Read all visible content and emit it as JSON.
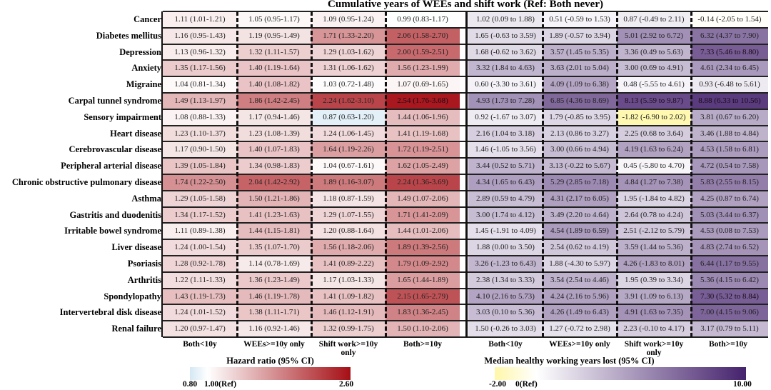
{
  "chart_data": {
    "type": "heatmap",
    "title": "Cumulative years of WEEs and shift work (Ref: Both never)",
    "columns": [
      "Both<10y",
      "WEEs>=10y only",
      "Shift work>=10y only",
      "Both>=10y"
    ],
    "rows": [
      "Cancer",
      "Diabetes mellitus",
      "Depression",
      "Anxiety",
      "Migraine",
      "Carpal tunnel syndrome",
      "Sensory impairment",
      "Heart disease",
      "Cerebrovascular disease",
      "Peripheral arterial disease",
      "Chronic obstructive pulmonary disease",
      "Asthma",
      "Gastritis and duodenitis",
      "Irritable bowel syndrome",
      "Liver disease",
      "Psoriasis",
      "Arthritis",
      "Spondylopathy",
      "Intervertebral disk disease",
      "Renal failure"
    ],
    "hazard_ratio": [
      [
        "1.11 (1.01-1.21)",
        "1.05 (0.95-1.17)",
        "1.09 (0.95-1.24)",
        "0.99 (0.83-1.17)"
      ],
      [
        "1.16 (0.95-1.43)",
        "1.19 (0.95-1.49)",
        "1.71 (1.33-2.20)",
        "2.06 (1.58-2.70)"
      ],
      [
        "1.13 (0.96-1.32)",
        "1.32 (1.11-1.57)",
        "1.29 (1.03-1.62)",
        "2.00 (1.59-2.51)"
      ],
      [
        "1.35 (1.17-1.56)",
        "1.40 (1.19-1.64)",
        "1.31 (1.06-1.62)",
        "1.56 (1.23-1.99)"
      ],
      [
        "1.04 (0.81-1.34)",
        "1.40 (1.08-1.82)",
        "1.03 (0.72-1.48)",
        "1.07 (0.69-1.65)"
      ],
      [
        "1.49 (1.13-1.97)",
        "1.86 (1.42-2.45)",
        "2.24 (1.62-3.10)",
        "2.54 (1.76-3.68)"
      ],
      [
        "1.08 (0.88-1.33)",
        "1.17 (0.94-1.46)",
        "0.87 (0.63-1.20)",
        "1.44 (1.06-1.96)"
      ],
      [
        "1.23 (1.10-1.37)",
        "1.23 (1.08-1.39)",
        "1.24 (1.06-1.45)",
        "1.41 (1.19-1.68)"
      ],
      [
        "1.17 (0.90-1.50)",
        "1.40 (1.07-1.83)",
        "1.64 (1.19-2.26)",
        "1.72 (1.19-2.51)"
      ],
      [
        "1.39 (1.05-1.84)",
        "1.34 (0.98-1.83)",
        "1.04 (0.67-1.61)",
        "1.62 (1.05-2.49)"
      ],
      [
        "1.74 (1.22-2.50)",
        "2.04 (1.42-2.92)",
        "1.89 (1.16-3.07)",
        "2.24 (1.36-3.69)"
      ],
      [
        "1.29 (1.05-1.58)",
        "1.50 (1.21-1.86)",
        "1.18 (0.87-1.59)",
        "1.49 (1.07-2.06)"
      ],
      [
        "1.34 (1.17-1.52)",
        "1.41 (1.23-1.63)",
        "1.29 (1.07-1.55)",
        "1.71 (1.41-2.09)"
      ],
      [
        "1.11 (0.89-1.38)",
        "1.44 (1.15-1.81)",
        "1.20 (0.88-1.64)",
        "1.44 (1.01-2.06)"
      ],
      [
        "1.24 (1.00-1.54)",
        "1.35 (1.07-1.70)",
        "1.56 (1.18-2.06)",
        "1.89 (1.39-2.56)"
      ],
      [
        "1.28 (0.92-1.78)",
        "1.14 (0.78-1.69)",
        "1.41 (0.89-2.22)",
        "1.79 (1.09-2.92)"
      ],
      [
        "1.22 (1.11-1.33)",
        "1.36 (1.23-1.49)",
        "1.17 (1.03-1.33)",
        "1.65 (1.44-1.89)"
      ],
      [
        "1.43 (1.19-1.73)",
        "1.46 (1.19-1.78)",
        "1.41 (1.09-1.82)",
        "2.15 (1.65-2.79)"
      ],
      [
        "1.24 (1.01-1.52)",
        "1.38 (1.11-1.71)",
        "1.46 (1.12-1.91)",
        "1.83 (1.36-2.45)"
      ],
      [
        "1.20 (0.97-1.47)",
        "1.16 (0.92-1.46)",
        "1.32 (0.99-1.75)",
        "1.50 (1.10-2.06)"
      ]
    ],
    "years_lost": [
      [
        "1.02 (0.09 to 1.88)",
        "0.51 (-0.59 to 1.53)",
        "0.87 (-0.49 to 2.11)",
        "-0.14 (-2.05 to 1.54)"
      ],
      [
        "1.65 (-0.63 to 3.59)",
        "1.89 (-0.57 to 3.94)",
        "5.01 (2.92 to 6.72)",
        "6.32 (4.37 to 7.90)"
      ],
      [
        "1.68 (-0.62 to 3.62)",
        "3.57 (1.45 to 5.35)",
        "3.36 (0.49 to 5.63)",
        "7.33 (5.46 to 8.80)"
      ],
      [
        "3.32 (1.84 to 4.63)",
        "3.63 (2.01 to 5.04)",
        "3.00 (0.69 to 4.91)",
        "4.61 (2.34 to 6.45)"
      ],
      [
        "0.60 (-3.30 to 3.61)",
        "4.09 (1.09 to 6.38)",
        "0.48 (-5.55 to 4.61)",
        "0.93 (-6.48 to 5.61)"
      ],
      [
        "4.93 (1.73 to 7.28)",
        "6.85 (4.36 to 8.69)",
        "8.13 (5.59 to 9.87)",
        "8.88 (6.33 to 10.56)"
      ],
      [
        "0.92 (-1.67 to 3.07)",
        "1.79 (-0.85 to 3.95)",
        "-1.82 (-6.90 to 2.02)",
        "3.81 (0.67 to 6.20)"
      ],
      [
        "2.16 (1.04 to 3.18)",
        "2.13 (0.86 to 3.27)",
        "2.25 (0.68 to 3.64)",
        "3.46 (1.88 to 4.84)"
      ],
      [
        "1.46 (-1.05 to 3.56)",
        "3.00 (0.66 to 4.94)",
        "4.19 (1.63 to 6.24)",
        "4.53 (1.58 to 6.81)"
      ],
      [
        "3.44 (0.52 to 5.71)",
        "3.13 (-0.22 to 5.67)",
        "0.45 (-5.80 to 4.70)",
        "4.72 (0.54 to 7.58)"
      ],
      [
        "4.34 (1.65 to 6.43)",
        "5.29 (2.85 to 7.18)",
        "4.84 (1.27 to 7.38)",
        "5.83 (2.55 to 8.15)"
      ],
      [
        "2.89 (0.59 to 4.79)",
        "4.31 (2.17 to 6.05)",
        "1.95 (-1.84 to 4.82)",
        "4.25 (0.87 to 6.74)"
      ],
      [
        "3.00 (1.74 to 4.12)",
        "3.49 (2.20 to 4.64)",
        "2.64 (0.78 to 4.24)",
        "5.03 (3.44 to 6.37)"
      ],
      [
        "1.45 (-1.91 to 4.09)",
        "4.54 (1.89 to 6.59)",
        "2.51 (-2.12 to 5.79)",
        "4.53 (0.08 to 7.53)"
      ],
      [
        "1.88 (0.00 to 3.50)",
        "2.54 (0.62 to 4.19)",
        "3.59 (1.44 to 5.36)",
        "4.83 (2.74 to 6.52)"
      ],
      [
        "3.26 (-1.23 to 6.43)",
        "1.88 (-4.30 to 5.97)",
        "4.26 (-1.83 to 8.01)",
        "6.44 (1.17 to 9.55)"
      ],
      [
        "2.38 (1.34 to 3.33)",
        "3.54 (2.54 to 4.46)",
        "1.95 (0.39 to 3.34)",
        "5.36 (4.15 to 6.42)"
      ],
      [
        "4.10 (2.16 to 5.73)",
        "4.24 (2.16 to 5.96)",
        "3.91 (1.09 to 6.13)",
        "7.30 (5.32 to 8.84)"
      ],
      [
        "3.03 (0.10 to 5.36)",
        "4.26 (1.49 to 6.43)",
        "4.91 (1.63 to 7.35)",
        "7.00 (4.15 to 9.06)"
      ],
      [
        "1.50 (-0.26 to 3.03)",
        "1.27 (-0.72 to 2.98)",
        "2.23 (-0.10 to 4.17)",
        "3.17 (0.79 to 5.11)"
      ]
    ],
    "legend_hr": {
      "title": "Hazard ratio (95% CI)",
      "min": 0.8,
      "ref": 1.0,
      "max": 2.6,
      "tick_min": "0.80",
      "tick_ref": "1.00(Ref)",
      "tick_max": "2.60",
      "colors": {
        "low": "#d4e8f4",
        "ref": "#ffffff",
        "high": "#a50f15"
      }
    },
    "legend_years": {
      "title": "Median healthy working years lost (95% CI)",
      "min": -2,
      "ref": 0,
      "max": 10,
      "tick_min": "-2.00",
      "tick_ref": "0(Ref)",
      "tick_max": "10.00",
      "colors": {
        "low": "#fff7a8",
        "ref": "#ffffff",
        "high": "#45226d"
      }
    }
  }
}
